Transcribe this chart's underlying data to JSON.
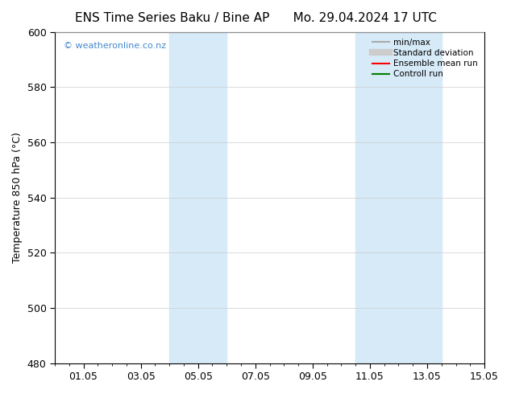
{
  "title_left": "ENS Time Series Baku / Bine AP",
  "title_right": "Mo. 29.04.2024 17 UTC",
  "ylabel": "Temperature 850 hPa (°C)",
  "ylim": [
    480,
    600
  ],
  "yticks": [
    480,
    500,
    520,
    540,
    560,
    580,
    600
  ],
  "xlim": [
    0,
    14
  ],
  "xtick_positions": [
    1,
    3,
    5,
    7,
    9,
    11,
    13,
    15
  ],
  "xtick_labels": [
    "01.05",
    "03.05",
    "05.05",
    "07.05",
    "09.05",
    "11.05",
    "13.05",
    "15.05"
  ],
  "shaded_bands": [
    {
      "x_start": 4.0,
      "x_end": 6.0
    },
    {
      "x_start": 10.5,
      "x_end": 13.5
    }
  ],
  "shaded_color": "#d6eaf8",
  "background_color": "#ffffff",
  "plot_bg_color": "#ffffff",
  "legend_items": [
    {
      "label": "min/max",
      "color": "#aaaaaa",
      "linewidth": 1.5,
      "linestyle": "-"
    },
    {
      "label": "Standard deviation",
      "color": "#cccccc",
      "linewidth": 6,
      "linestyle": "-"
    },
    {
      "label": "Ensemble mean run",
      "color": "#ff0000",
      "linewidth": 1.5,
      "linestyle": "-"
    },
    {
      "label": "Controll run",
      "color": "#008000",
      "linewidth": 1.5,
      "linestyle": "-"
    }
  ],
  "watermark_text": "© weatheronline.co.nz",
  "watermark_color": "#4488cc",
  "title_fontsize": 11,
  "axis_fontsize": 9,
  "tick_fontsize": 9,
  "grid_color": "#cccccc",
  "grid_linestyle": "-",
  "grid_linewidth": 0.5
}
